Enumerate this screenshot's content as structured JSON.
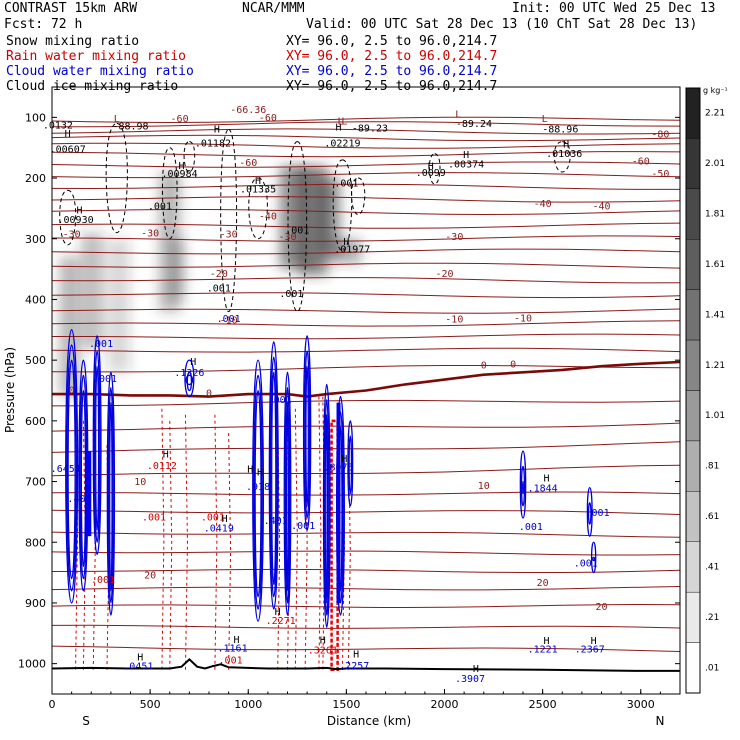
{
  "header": {
    "model": "CONTRAST 15km ARW",
    "org": "NCAR/MMM",
    "init": "Init: 00 UTC Wed 25 Dec 13",
    "fcst": "Fcst:    72 h",
    "valid": "Valid: 00 UTC Sat 28 Dec 13 (10 ChT Sat 28 Dec 13)"
  },
  "fields": [
    {
      "name": "Snow mixing ratio",
      "xy": "XY=   96.0,   2.5 to   96.0,214.7",
      "color": "#000000"
    },
    {
      "name": "Rain water mixing ratio",
      "xy": "XY=   96.0,   2.5 to   96.0,214.7",
      "color": "#cc0000"
    },
    {
      "name": "Cloud water mixing ratio",
      "xy": "XY=   96.0,   2.5 to   96.0,214.7",
      "color": "#0000cc"
    },
    {
      "name": "Cloud ice mixing ratio",
      "xy": "XY=   96.0,   2.5 to   96.0,214.7",
      "color": "#000000"
    }
  ],
  "chart_data": {
    "type": "cross-section",
    "xlabel": "Distance (km)",
    "ylabel": "Pressure (hPa)",
    "xlim": [
      0,
      3200
    ],
    "ylim": [
      1050,
      50
    ],
    "x_ticks": [
      0,
      500,
      1000,
      1500,
      2000,
      2500,
      3000
    ],
    "y_ticks": [
      100,
      200,
      300,
      400,
      500,
      600,
      700,
      800,
      900,
      1000
    ],
    "end_labels": {
      "left": "S",
      "right": "N"
    },
    "colorbar": {
      "unit": "g kg⁻¹",
      "labels": [
        "2.21",
        "2.01",
        "1.81",
        "1.61",
        "1.41",
        "1.21",
        "1.01",
        ".81",
        ".61",
        ".41",
        ".21",
        ".01"
      ],
      "values": [
        2.21,
        2.01,
        1.81,
        1.61,
        1.41,
        1.21,
        1.01,
        0.81,
        0.61,
        0.41,
        0.21,
        0.01
      ]
    },
    "temperature_contours": {
      "color": "#8b1a1a",
      "labels": [
        {
          "text": "-60",
          "x": 650,
          "p": 108
        },
        {
          "text": "-66.36",
          "x": 1000,
          "p": 93
        },
        {
          "text": "-60",
          "x": 1100,
          "p": 106
        },
        {
          "text": "-80",
          "x": 3100,
          "p": 133
        },
        {
          "text": "-60",
          "x": 1000,
          "p": 180
        },
        {
          "text": "-60",
          "x": 3000,
          "p": 178
        },
        {
          "text": "-50",
          "x": 3100,
          "p": 198
        },
        {
          "text": "-40",
          "x": 2500,
          "p": 248
        },
        {
          "text": "-40",
          "x": 2800,
          "p": 252
        },
        {
          "text": "-40",
          "x": 1100,
          "p": 268
        },
        {
          "text": "-30",
          "x": 100,
          "p": 298
        },
        {
          "text": "-30",
          "x": 500,
          "p": 296
        },
        {
          "text": "-30",
          "x": 900,
          "p": 298
        },
        {
          "text": "-30",
          "x": 1200,
          "p": 302
        },
        {
          "text": "-30",
          "x": 2050,
          "p": 302
        },
        {
          "text": "-20",
          "x": 850,
          "p": 363
        },
        {
          "text": "-20",
          "x": 2000,
          "p": 363
        },
        {
          "text": "-10",
          "x": 900,
          "p": 440
        },
        {
          "text": "-10",
          "x": 2050,
          "p": 438
        },
        {
          "text": "-10",
          "x": 2400,
          "p": 436
        },
        {
          "text": "0",
          "x": 100,
          "p": 555
        },
        {
          "text": "0",
          "x": 800,
          "p": 560
        },
        {
          "text": "0",
          "x": 2200,
          "p": 514
        },
        {
          "text": "0",
          "x": 2350,
          "p": 512
        },
        {
          "text": "10",
          "x": 450,
          "p": 706
        },
        {
          "text": "10",
          "x": 2200,
          "p": 712
        },
        {
          "text": "20",
          "x": 500,
          "p": 860
        },
        {
          "text": "20",
          "x": 2500,
          "p": 872
        },
        {
          "text": "20",
          "x": 2800,
          "p": 912
        }
      ],
      "extrema": [
        {
          "text": ".0132",
          "x": 30,
          "p": 118
        },
        {
          "text": ".00607",
          "x": 80,
          "p": 158
        },
        {
          "text": "-88.98",
          "x": 400,
          "p": 120
        },
        {
          "text": ".01182",
          "x": 820,
          "p": 148
        },
        {
          "text": ".02219",
          "x": 1480,
          "p": 148
        },
        {
          "text": "-89.23",
          "x": 1620,
          "p": 123
        },
        {
          "text": "-89.24",
          "x": 2150,
          "p": 116
        },
        {
          "text": "-88.96",
          "x": 2590,
          "p": 125
        }
      ]
    },
    "snow_labels": [
      {
        "text": ".00984",
        "x": 650,
        "p": 198
      },
      {
        "text": ".01335",
        "x": 1050,
        "p": 224
      },
      {
        "text": ".001",
        "x": 550,
        "p": 252
      },
      {
        "text": ".001",
        "x": 1500,
        "p": 214
      },
      {
        "text": ".001",
        "x": 1250,
        "p": 291
      },
      {
        "text": ".01977",
        "x": 1530,
        "p": 323
      },
      {
        "text": ".001",
        "x": 850,
        "p": 387
      },
      {
        "text": ".001",
        "x": 1220,
        "p": 396
      },
      {
        "text": ".00930",
        "x": 120,
        "p": 274
      },
      {
        "text": ".0099",
        "x": 1930,
        "p": 197
      },
      {
        "text": ".00374",
        "x": 2110,
        "p": 183
      },
      {
        "text": ".01036",
        "x": 2610,
        "p": 165
      }
    ],
    "rain_labels": [
      {
        "text": ".0112",
        "x": 560,
        "p": 679
      },
      {
        "text": ".001",
        "x": 520,
        "p": 764
      },
      {
        "text": ".001",
        "x": 820,
        "p": 764
      },
      {
        "text": ".001",
        "x": 260,
        "p": 867
      },
      {
        "text": ".001",
        "x": 910,
        "p": 1000
      },
      {
        "text": ".2271",
        "x": 1165,
        "p": 935
      },
      {
        "text": ".3261",
        "x": 1380,
        "p": 983
      }
    ],
    "cloud_water_labels": [
      {
        "text": ".001",
        "x": 900,
        "p": 437
      },
      {
        "text": ".001",
        "x": 250,
        "p": 478
      },
      {
        "text": ".001",
        "x": 270,
        "p": 536
      },
      {
        "text": ".1326",
        "x": 700,
        "p": 526
      },
      {
        "text": ".001",
        "x": 1160,
        "p": 571
      },
      {
        "text": ".6451",
        "x": 70,
        "p": 684
      },
      {
        "text": ".401",
        "x": 140,
        "p": 734
      },
      {
        "text": ".918",
        "x": 1050,
        "p": 714
      },
      {
        "text": ".401",
        "x": 1140,
        "p": 770
      },
      {
        "text": ".001",
        "x": 1280,
        "p": 778
      },
      {
        "text": ".8075",
        "x": 1460,
        "p": 682
      },
      {
        "text": ".0419",
        "x": 850,
        "p": 782
      },
      {
        "text": ".1844",
        "x": 2500,
        "p": 716
      },
      {
        "text": ".001",
        "x": 2780,
        "p": 757
      },
      {
        "text": ".001",
        "x": 2440,
        "p": 780
      },
      {
        "text": ".001",
        "x": 2720,
        "p": 840
      },
      {
        "text": ".0451",
        "x": 440,
        "p": 1010
      },
      {
        "text": ".1161",
        "x": 920,
        "p": 980
      },
      {
        "text": ".2257",
        "x": 1540,
        "p": 1009
      },
      {
        "text": ".3907",
        "x": 2130,
        "p": 1030
      },
      {
        "text": ".1221",
        "x": 2500,
        "p": 982
      },
      {
        "text": ".2367",
        "x": 2740,
        "p": 982
      }
    ],
    "highs": [
      {
        "x": 80,
        "p": 132
      },
      {
        "x": 840,
        "p": 125
      },
      {
        "x": 1460,
        "p": 122
      },
      {
        "x": 660,
        "p": 185
      },
      {
        "x": 1050,
        "p": 210
      },
      {
        "x": 1930,
        "p": 186
      },
      {
        "x": 2110,
        "p": 167
      },
      {
        "x": 2620,
        "p": 150
      },
      {
        "x": 140,
        "p": 258
      },
      {
        "x": 1500,
        "p": 310
      },
      {
        "x": 720,
        "p": 508
      },
      {
        "x": 580,
        "p": 660
      },
      {
        "x": 2520,
        "p": 700
      },
      {
        "x": 1060,
        "p": 690
      },
      {
        "x": 1490,
        "p": 668
      },
      {
        "x": 1550,
        "p": 990
      },
      {
        "x": 2160,
        "p": 1014
      },
      {
        "x": 2520,
        "p": 968
      },
      {
        "x": 2760,
        "p": 968
      },
      {
        "x": 450,
        "p": 995
      },
      {
        "x": 940,
        "p": 966
      },
      {
        "x": 1010,
        "p": 685
      },
      {
        "x": 1380,
        "p": 967
      },
      {
        "x": 1150,
        "p": 920
      },
      {
        "x": 880,
        "p": 767
      }
    ],
    "lows": [
      {
        "x": 330,
        "p": 108
      },
      {
        "x": 1470,
        "p": 112
      },
      {
        "x": 1490,
        "p": 112
      },
      {
        "x": 2070,
        "p": 100
      },
      {
        "x": 2510,
        "p": 108
      }
    ],
    "topography_km": [
      0,
      200,
      400,
      600,
      660,
      700,
      740,
      780,
      820,
      860,
      900,
      1100,
      1300,
      1400,
      1450,
      1500,
      1700,
      2000,
      2500,
      3000,
      3200
    ],
    "topography_hpa": [
      1008,
      1007,
      1008,
      1008,
      1005,
      993,
      1005,
      1008,
      1004,
      1001,
      1006,
      1008,
      1008,
      1007,
      1009,
      1008,
      1008,
      1009,
      1010,
      1012,
      1012
    ]
  }
}
